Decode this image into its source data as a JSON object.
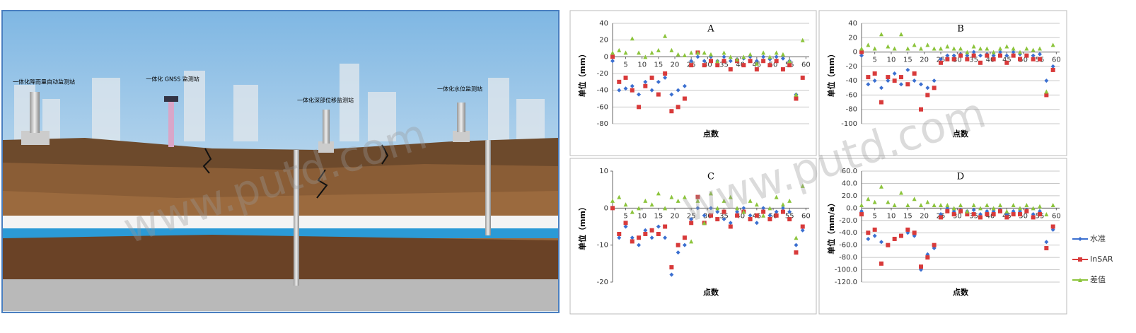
{
  "illustration": {
    "labels": [
      "一体化降雨量自动监测站",
      "一体化 GNSS 监测站",
      "一体化深部位移监测站",
      "一体化水位监测站"
    ]
  },
  "watermark": "www.putd.com",
  "chart_data": [
    {
      "type": "line",
      "title": "A",
      "y_label": "单位（mm）",
      "x_label": "点数",
      "x": [
        1,
        3,
        5,
        7,
        9,
        11,
        13,
        15,
        17,
        19,
        21,
        23,
        25,
        27,
        29,
        31,
        33,
        35,
        37,
        39,
        41,
        43,
        45,
        47,
        49,
        51,
        53,
        55,
        57,
        59
      ],
      "xlim": [
        1,
        61
      ],
      "xticks": [
        5,
        10,
        15,
        20,
        25,
        30,
        35,
        40,
        45,
        50,
        55,
        60
      ],
      "ylim": [
        -80,
        40
      ],
      "yticks": [
        -80,
        -60,
        -40,
        -20,
        0,
        20,
        40
      ],
      "grid": true,
      "series": [
        {
          "color": "#3b6fd0",
          "marker": "diamond",
          "values": [
            -5,
            -40,
            -38,
            -35,
            -45,
            -30,
            -40,
            -30,
            -25,
            -45,
            -40,
            -35,
            -5,
            0,
            -5,
            0,
            -5,
            0,
            -5,
            -3,
            -2,
            0,
            -5,
            0,
            -3,
            0,
            -2,
            -5,
            -45,
            -25
          ]
        },
        {
          "color": "#d83a3a",
          "marker": "square",
          "values": [
            0,
            -30,
            -25,
            -40,
            -60,
            -35,
            -25,
            -45,
            -20,
            -65,
            -60,
            -50,
            -10,
            5,
            -10,
            -5,
            -10,
            -5,
            -15,
            -5,
            -10,
            -5,
            -15,
            -5,
            -10,
            -5,
            -15,
            -10,
            -50,
            -25
          ]
        },
        {
          "color": "#8cc43c",
          "marker": "triangle",
          "values": [
            5,
            8,
            5,
            22,
            5,
            0,
            5,
            8,
            25,
            8,
            3,
            2,
            5,
            5,
            5,
            3,
            -5,
            5,
            0,
            -3,
            0,
            3,
            -8,
            5,
            0,
            5,
            3,
            -5,
            -45,
            20
          ]
        }
      ]
    },
    {
      "type": "line",
      "title": "B",
      "y_label": "单位（mm）",
      "x_label": "点数",
      "x": [
        1,
        3,
        5,
        7,
        9,
        11,
        13,
        15,
        17,
        19,
        21,
        23,
        25,
        27,
        29,
        31,
        33,
        35,
        37,
        39,
        41,
        43,
        45,
        47,
        49,
        51,
        53,
        55,
        57,
        59
      ],
      "xlim": [
        1,
        61
      ],
      "xticks": [
        5,
        10,
        15,
        20,
        25,
        30,
        35,
        40,
        45,
        50,
        55,
        60
      ],
      "ylim": [
        -100,
        40
      ],
      "yticks": [
        -100,
        -80,
        -60,
        -40,
        -20,
        0,
        20,
        40
      ],
      "grid": true,
      "series": [
        {
          "color": "#3b6fd0",
          "marker": "diamond",
          "values": [
            -5,
            -45,
            -40,
            -50,
            -40,
            -30,
            -45,
            -25,
            -40,
            -45,
            -50,
            -40,
            -10,
            -5,
            -5,
            -3,
            -5,
            0,
            -5,
            -3,
            -5,
            0,
            -5,
            0,
            -3,
            -5,
            -5,
            -3,
            -40,
            -20
          ]
        },
        {
          "color": "#d83a3a",
          "marker": "square",
          "values": [
            0,
            -35,
            -30,
            -70,
            -35,
            -40,
            -35,
            -45,
            -30,
            -80,
            -60,
            -50,
            -15,
            -10,
            -10,
            -5,
            -10,
            -5,
            -15,
            -5,
            -10,
            -5,
            -15,
            -5,
            -10,
            -5,
            -10,
            -10,
            -60,
            -25
          ]
        },
        {
          "color": "#8cc43c",
          "marker": "triangle",
          "values": [
            5,
            10,
            5,
            25,
            8,
            5,
            25,
            5,
            10,
            5,
            10,
            5,
            5,
            8,
            5,
            5,
            0,
            8,
            5,
            5,
            0,
            5,
            8,
            5,
            0,
            5,
            3,
            5,
            -55,
            10
          ]
        }
      ]
    },
    {
      "type": "line",
      "title": "C",
      "y_label": "单位（mm）",
      "x_label": "点数",
      "x": [
        1,
        3,
        5,
        7,
        9,
        11,
        13,
        15,
        17,
        19,
        21,
        23,
        25,
        27,
        29,
        31,
        33,
        35,
        37,
        39,
        41,
        43,
        45,
        47,
        49,
        51,
        53,
        55,
        57,
        59
      ],
      "xlim": [
        1,
        61
      ],
      "xticks": [
        5,
        10,
        15,
        20,
        25,
        30,
        35,
        40,
        45,
        50,
        55,
        60
      ],
      "ylim": [
        -20,
        10
      ],
      "yticks": [
        -20,
        -10,
        0,
        10
      ],
      "grid": false,
      "series": [
        {
          "color": "#3b6fd0",
          "marker": "diamond",
          "values": [
            0,
            -8,
            -5,
            -8,
            -10,
            -6,
            -8,
            -5,
            -8,
            -18,
            -12,
            -10,
            -3,
            0,
            -2,
            0,
            -1,
            -3,
            -4,
            -1,
            0,
            -2,
            -4,
            0,
            -2,
            -1,
            0,
            -1,
            -10,
            -6
          ]
        },
        {
          "color": "#d83a3a",
          "marker": "square",
          "values": [
            0,
            -7,
            -4,
            -9,
            -8,
            -7,
            -6,
            -7,
            -5,
            -16,
            -10,
            -8,
            -4,
            3,
            -4,
            -2,
            -3,
            -1,
            -5,
            -2,
            -1,
            -3,
            -2,
            -1,
            -3,
            -2,
            -1,
            -3,
            -12,
            -5
          ]
        },
        {
          "color": "#8cc43c",
          "marker": "triangle",
          "values": [
            2,
            3,
            1,
            -1,
            0,
            2,
            1,
            4,
            0,
            3,
            2,
            3,
            -9,
            2,
            -4,
            4,
            0,
            2,
            3,
            0,
            -1,
            2,
            1,
            -2,
            0,
            3,
            1,
            2,
            -8,
            6
          ]
        }
      ]
    },
    {
      "type": "line",
      "title": "D",
      "y_label": "单位（mm/a）",
      "x_label": "点数",
      "x": [
        1,
        3,
        5,
        7,
        9,
        11,
        13,
        15,
        17,
        19,
        21,
        23,
        25,
        27,
        29,
        31,
        33,
        35,
        37,
        39,
        41,
        43,
        45,
        47,
        49,
        51,
        53,
        55,
        57,
        59
      ],
      "xlim": [
        1,
        61
      ],
      "xticks": [
        5,
        10,
        15,
        20,
        25,
        30,
        35,
        40,
        45,
        50,
        55,
        60
      ],
      "ylim": [
        -120,
        60
      ],
      "yticks": [
        {
          "value": -120,
          "label": "-120.0"
        },
        {
          "value": -100,
          "label": "-100.0"
        },
        {
          "value": -80,
          "label": "-80.0"
        },
        {
          "value": -60,
          "label": "-60.0"
        },
        {
          "value": -40,
          "label": "-40.0"
        },
        {
          "value": -20,
          "label": "-20.0"
        },
        {
          "value": 0,
          "label": "0.0"
        },
        {
          "value": 20,
          "label": "20.0"
        },
        {
          "value": 40,
          "label": "40.0"
        },
        {
          "value": 60,
          "label": "60.0"
        }
      ],
      "grid": true,
      "legend": "right",
      "series": [
        {
          "name": "水准",
          "color": "#3b6fd0",
          "marker": "diamond",
          "values": [
            -5,
            -50,
            -45,
            -55,
            -60,
            -50,
            -45,
            -40,
            -45,
            -100,
            -75,
            -65,
            -10,
            0,
            -5,
            -3,
            -5,
            -3,
            -10,
            -5,
            -5,
            -3,
            -10,
            -5,
            -5,
            -3,
            -10,
            -5,
            -55,
            -35
          ]
        },
        {
          "name": "InSAR",
          "color": "#d83a3a",
          "marker": "square",
          "values": [
            -10,
            -40,
            -35,
            -90,
            -60,
            -50,
            -45,
            -35,
            -40,
            -95,
            -80,
            -60,
            -15,
            -5,
            -10,
            -5,
            -10,
            -10,
            -15,
            -10,
            -10,
            -5,
            -15,
            -10,
            -10,
            -5,
            -15,
            -10,
            -65,
            -30
          ]
        },
        {
          "name": "差值",
          "color": "#8cc43c",
          "marker": "triangle",
          "values": [
            5,
            15,
            10,
            35,
            10,
            5,
            25,
            5,
            15,
            5,
            10,
            5,
            5,
            5,
            0,
            5,
            -5,
            5,
            0,
            5,
            0,
            5,
            -5,
            5,
            0,
            5,
            0,
            3,
            -10,
            5
          ]
        }
      ]
    }
  ]
}
